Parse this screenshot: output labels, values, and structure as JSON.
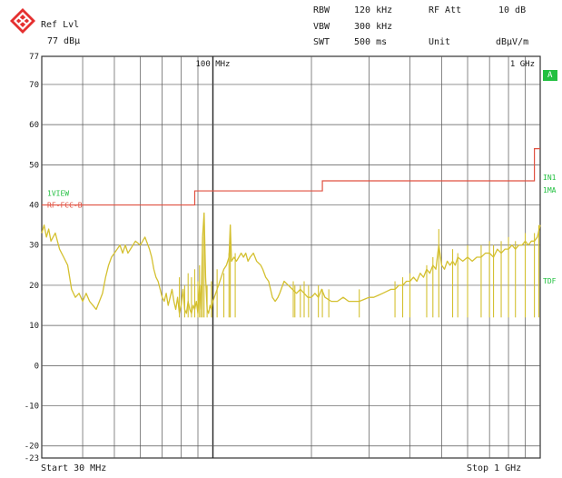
{
  "header": {
    "ref_lvl_label": "Ref Lvl",
    "ref_lvl_value": "77 dBµ",
    "rbw_label": "RBW",
    "rbw_value": "120 kHz",
    "vbw_label": "VBW",
    "vbw_value": "300 kHz",
    "swt_label": "SWT",
    "swt_value": "500 ms",
    "rf_att_label": "RF Att",
    "rf_att_value": "10 dB",
    "unit_label": "Unit",
    "unit_value": "dBµV/m"
  },
  "footer": {
    "start_label": "Start 30 MHz",
    "stop_label": "Stop 1 GHz"
  },
  "side_labels": {
    "trace_mode": "A",
    "in1": "IN1",
    "inb": "1MA",
    "tdf": "TDF"
  },
  "colors": {
    "trace": "#d4c030",
    "limit": "#e05040",
    "label_green": "#22c040",
    "grid": "#333333"
  },
  "chart_data": {
    "type": "line",
    "x_scale": "log",
    "x_range_mhz": [
      30,
      1000
    ],
    "ylim": [
      -23,
      77
    ],
    "grid": true,
    "y_ticks": [
      {
        "value": 77,
        "label": "77"
      },
      {
        "value": 70,
        "label": "70"
      },
      {
        "value": 60,
        "label": "60"
      },
      {
        "value": 50,
        "label": "50"
      },
      {
        "value": 40,
        "label": "40"
      },
      {
        "value": 30,
        "label": "30"
      },
      {
        "value": 20,
        "label": "20"
      },
      {
        "value": 10,
        "label": "10"
      },
      {
        "value": 0,
        "label": "0"
      },
      {
        "value": -10,
        "label": "-10"
      },
      {
        "value": -20,
        "label": "-20"
      },
      {
        "value": -23,
        "label": "-23"
      }
    ],
    "x_tick_labels": [
      {
        "value": 100,
        "label": "100 MHz"
      },
      {
        "value": 1000,
        "label": "1 GHz"
      }
    ],
    "annotations": [
      {
        "text": "1VIEW",
        "x": 30,
        "y": 43
      },
      {
        "text": "RF-FCC-B",
        "x": 30,
        "y": 40
      }
    ],
    "limit_line": {
      "name": "RF-FCC-B",
      "points": [
        [
          30,
          40
        ],
        [
          88,
          40
        ],
        [
          88,
          43.5
        ],
        [
          216,
          43.5
        ],
        [
          216,
          46
        ],
        [
          960,
          46
        ],
        [
          960,
          54
        ],
        [
          1000,
          54
        ]
      ]
    },
    "series": [
      {
        "points": [
          [
            30,
            33
          ],
          [
            30.5,
            35
          ],
          [
            31,
            32
          ],
          [
            31.5,
            34
          ],
          [
            32,
            31
          ],
          [
            33,
            33
          ],
          [
            34,
            29
          ],
          [
            35,
            27
          ],
          [
            36,
            25
          ],
          [
            37,
            19
          ],
          [
            38,
            17
          ],
          [
            39,
            18
          ],
          [
            40,
            16
          ],
          [
            41,
            18
          ],
          [
            42,
            16
          ],
          [
            43,
            15
          ],
          [
            44,
            14
          ],
          [
            45,
            16
          ],
          [
            46,
            18
          ],
          [
            47,
            22
          ],
          [
            48,
            25
          ],
          [
            49,
            27
          ],
          [
            50,
            28
          ],
          [
            51,
            29
          ],
          [
            52,
            30
          ],
          [
            53,
            28
          ],
          [
            54,
            30
          ],
          [
            55,
            28
          ],
          [
            56,
            29
          ],
          [
            58,
            31
          ],
          [
            60,
            30
          ],
          [
            62,
            32
          ],
          [
            64,
            29
          ],
          [
            65,
            27
          ],
          [
            66,
            24
          ],
          [
            67,
            22
          ],
          [
            68,
            21
          ],
          [
            69,
            19
          ],
          [
            70,
            17
          ],
          [
            71,
            16
          ],
          [
            72,
            18
          ],
          [
            73,
            15
          ],
          [
            74,
            17
          ],
          [
            75,
            19
          ],
          [
            76,
            16
          ],
          [
            77,
            14
          ],
          [
            78,
            17
          ],
          [
            79,
            13
          ],
          [
            80,
            15
          ],
          [
            81,
            19
          ],
          [
            82,
            14
          ],
          [
            83,
            13
          ],
          [
            84,
            16
          ],
          [
            85,
            14
          ],
          [
            86,
            13
          ],
          [
            87,
            15
          ],
          [
            88,
            14
          ],
          [
            89,
            16
          ],
          [
            90,
            13
          ],
          [
            91,
            20
          ],
          [
            92,
            14
          ],
          [
            93,
            32
          ],
          [
            94,
            38
          ],
          [
            95,
            22
          ],
          [
            96,
            14
          ],
          [
            97,
            13
          ],
          [
            98,
            15
          ],
          [
            99,
            14
          ],
          [
            100,
            16
          ],
          [
            101,
            17
          ],
          [
            102,
            18
          ],
          [
            104,
            20
          ],
          [
            106,
            22
          ],
          [
            108,
            24
          ],
          [
            110,
            25
          ],
          [
            112,
            27
          ],
          [
            113,
            35
          ],
          [
            114,
            26
          ],
          [
            116,
            27
          ],
          [
            118,
            26
          ],
          [
            120,
            27
          ],
          [
            122,
            28
          ],
          [
            124,
            27
          ],
          [
            126,
            28
          ],
          [
            128,
            26
          ],
          [
            130,
            27
          ],
          [
            133,
            28
          ],
          [
            136,
            26
          ],
          [
            140,
            25
          ],
          [
            142,
            24
          ],
          [
            145,
            22
          ],
          [
            148,
            21
          ],
          [
            150,
            19
          ],
          [
            152,
            17
          ],
          [
            155,
            16
          ],
          [
            158,
            17
          ],
          [
            160,
            18
          ],
          [
            165,
            21
          ],
          [
            170,
            20
          ],
          [
            175,
            19
          ],
          [
            180,
            18
          ],
          [
            185,
            19
          ],
          [
            190,
            18
          ],
          [
            195,
            17
          ],
          [
            200,
            17
          ],
          [
            205,
            18
          ],
          [
            210,
            17
          ],
          [
            215,
            19
          ],
          [
            220,
            17
          ],
          [
            230,
            16
          ],
          [
            240,
            16
          ],
          [
            250,
            17
          ],
          [
            260,
            16
          ],
          [
            270,
            16
          ],
          [
            280,
            16
          ],
          [
            290,
            16.5
          ],
          [
            300,
            17
          ],
          [
            310,
            17
          ],
          [
            320,
            17.5
          ],
          [
            330,
            18
          ],
          [
            340,
            18.5
          ],
          [
            350,
            19
          ],
          [
            360,
            19
          ],
          [
            370,
            20
          ],
          [
            380,
            20
          ],
          [
            390,
            21
          ],
          [
            400,
            21
          ],
          [
            410,
            22
          ],
          [
            420,
            21
          ],
          [
            430,
            23
          ],
          [
            440,
            22
          ],
          [
            450,
            24
          ],
          [
            460,
            23
          ],
          [
            470,
            25
          ],
          [
            480,
            24
          ],
          [
            490,
            30
          ],
          [
            500,
            25
          ],
          [
            510,
            24
          ],
          [
            520,
            26
          ],
          [
            530,
            25
          ],
          [
            540,
            26
          ],
          [
            550,
            25
          ],
          [
            560,
            27
          ],
          [
            580,
            26
          ],
          [
            600,
            27
          ],
          [
            620,
            26
          ],
          [
            640,
            27
          ],
          [
            660,
            27
          ],
          [
            680,
            28
          ],
          [
            700,
            28
          ],
          [
            720,
            27
          ],
          [
            740,
            29
          ],
          [
            760,
            28
          ],
          [
            780,
            29
          ],
          [
            800,
            29
          ],
          [
            820,
            30
          ],
          [
            840,
            29
          ],
          [
            860,
            30
          ],
          [
            880,
            30
          ],
          [
            900,
            31
          ],
          [
            920,
            30
          ],
          [
            940,
            31
          ],
          [
            960,
            31
          ],
          [
            980,
            32
          ],
          [
            1000,
            35
          ]
        ]
      }
    ],
    "spikes_mhz": [
      [
        79,
        22
      ],
      [
        82,
        20
      ],
      [
        84,
        23
      ],
      [
        86,
        22
      ],
      [
        88,
        24
      ],
      [
        90,
        21
      ],
      [
        91,
        25
      ],
      [
        92,
        20
      ],
      [
        93,
        32
      ],
      [
        94,
        38
      ],
      [
        96,
        20
      ],
      [
        99,
        21
      ],
      [
        103,
        24
      ],
      [
        108,
        23
      ],
      [
        112,
        28
      ],
      [
        113,
        35
      ],
      [
        117,
        28
      ],
      [
        176,
        21
      ],
      [
        178,
        20
      ],
      [
        185,
        20
      ],
      [
        190,
        21
      ],
      [
        196,
        20
      ],
      [
        210,
        20
      ],
      [
        216,
        19
      ],
      [
        226,
        19
      ],
      [
        280,
        19
      ],
      [
        360,
        21
      ],
      [
        380,
        22
      ],
      [
        400,
        23
      ],
      [
        450,
        25
      ],
      [
        470,
        27
      ],
      [
        490,
        34
      ],
      [
        540,
        29
      ],
      [
        560,
        28
      ],
      [
        600,
        30
      ],
      [
        660,
        30
      ],
      [
        700,
        31
      ],
      [
        720,
        30
      ],
      [
        760,
        31
      ],
      [
        800,
        32
      ],
      [
        840,
        31
      ],
      [
        900,
        33
      ],
      [
        960,
        33
      ],
      [
        990,
        35
      ]
    ]
  }
}
